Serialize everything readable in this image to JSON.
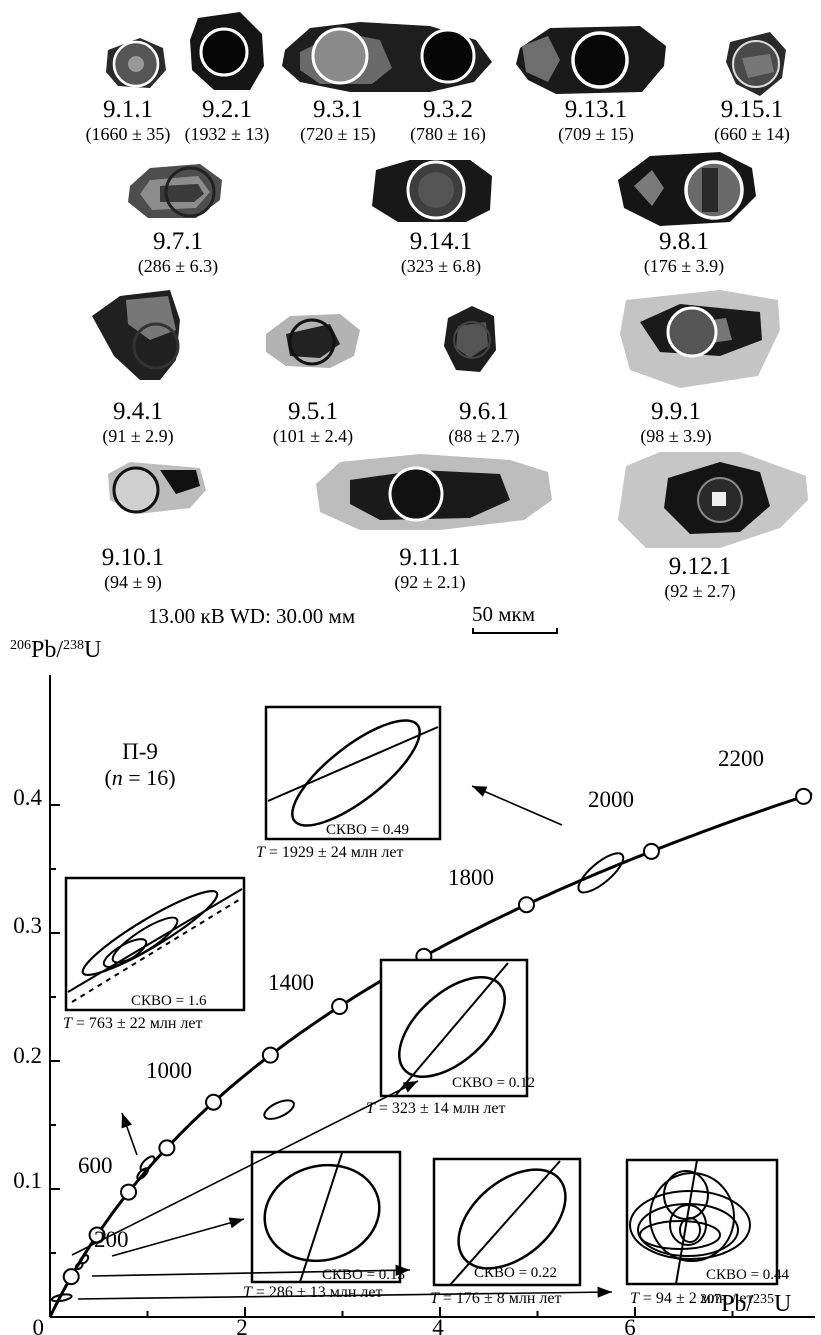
{
  "grains": [
    {
      "id": "9.1.1",
      "age": "(1660 ± 35)"
    },
    {
      "id": "9.2.1",
      "age": "(1932 ± 13)"
    },
    {
      "id": "9.3.1",
      "age": "(720 ± 15)"
    },
    {
      "id": "9.3.2",
      "age": "(780 ± 16)"
    },
    {
      "id": "9.13.1",
      "age": "(709 ± 15)"
    },
    {
      "id": "9.15.1",
      "age": "(660 ± 14)"
    },
    {
      "id": "9.7.1",
      "age": "(286 ± 6.3)"
    },
    {
      "id": "9.14.1",
      "age": "(323 ± 6.8)"
    },
    {
      "id": "9.8.1",
      "age": "(176 ± 3.9)"
    },
    {
      "id": "9.4.1",
      "age": "(91 ± 2.9)"
    },
    {
      "id": "9.5.1",
      "age": "(101 ± 2.4)"
    },
    {
      "id": "9.6.1",
      "age": "(88 ± 2.7)"
    },
    {
      "id": "9.9.1",
      "age": "(98 ± 3.9)"
    },
    {
      "id": "9.10.1",
      "age": "(94 ± 9)"
    },
    {
      "id": "9.11.1",
      "age": "(92 ± 2.1)"
    },
    {
      "id": "9.12.1",
      "age": "(92 ± 2.7)"
    }
  ],
  "sem_info": "13.00 кВ   WD: 30.00 мм",
  "scale_bar_label": "50 мкм",
  "chart_data": {
    "type": "scatter",
    "subtype": "concordia",
    "xlabel": "207Pb/235U",
    "ylabel": "206Pb/238U",
    "xticks": [
      "0",
      "2",
      "4",
      "6"
    ],
    "yticks": [
      "0.1",
      "0.2",
      "0.3",
      "0.4"
    ],
    "xlim": [
      0,
      8
    ],
    "ylim": [
      0,
      0.45
    ],
    "sample_label": "П-9",
    "n_label": "(n = 16)",
    "concordia_ages_ma": [
      200,
      400,
      600,
      800,
      1000,
      1200,
      1400,
      1600,
      1800,
      2000,
      2200
    ],
    "age_labels": [
      "200",
      "600",
      "1000",
      "1400",
      "1800",
      "2000",
      "2200"
    ],
    "data_ellipses": [
      {
        "x": 5.65,
        "y": 0.347
      },
      {
        "x": 1.0,
        "y": 0.12
      },
      {
        "x": 0.95,
        "y": 0.112
      },
      {
        "x": 2.35,
        "y": 0.162
      },
      {
        "x": 0.35,
        "y": 0.045
      },
      {
        "x": 0.3,
        "y": 0.04
      },
      {
        "x": 0.12,
        "y": 0.015
      }
    ],
    "insets": [
      {
        "mswd": "СКВО = 0.49",
        "age": "T = 1929 ± 24 млн лет"
      },
      {
        "mswd": "СКВО = 1.6",
        "age": "T = 763 ± 22 млн лет"
      },
      {
        "mswd": "СКВО = 0.12",
        "age": "T = 323 ± 14 млн лет"
      },
      {
        "mswd": "СКВО = 0.13",
        "age": "T = 286 ± 13 млн лет"
      },
      {
        "mswd": "СКВО = 0.22",
        "age": "T = 176 ± 8 млн лет"
      },
      {
        "mswd": "СКВО = 0.44",
        "age": "T = 94 ± 2 млн лет"
      }
    ]
  }
}
